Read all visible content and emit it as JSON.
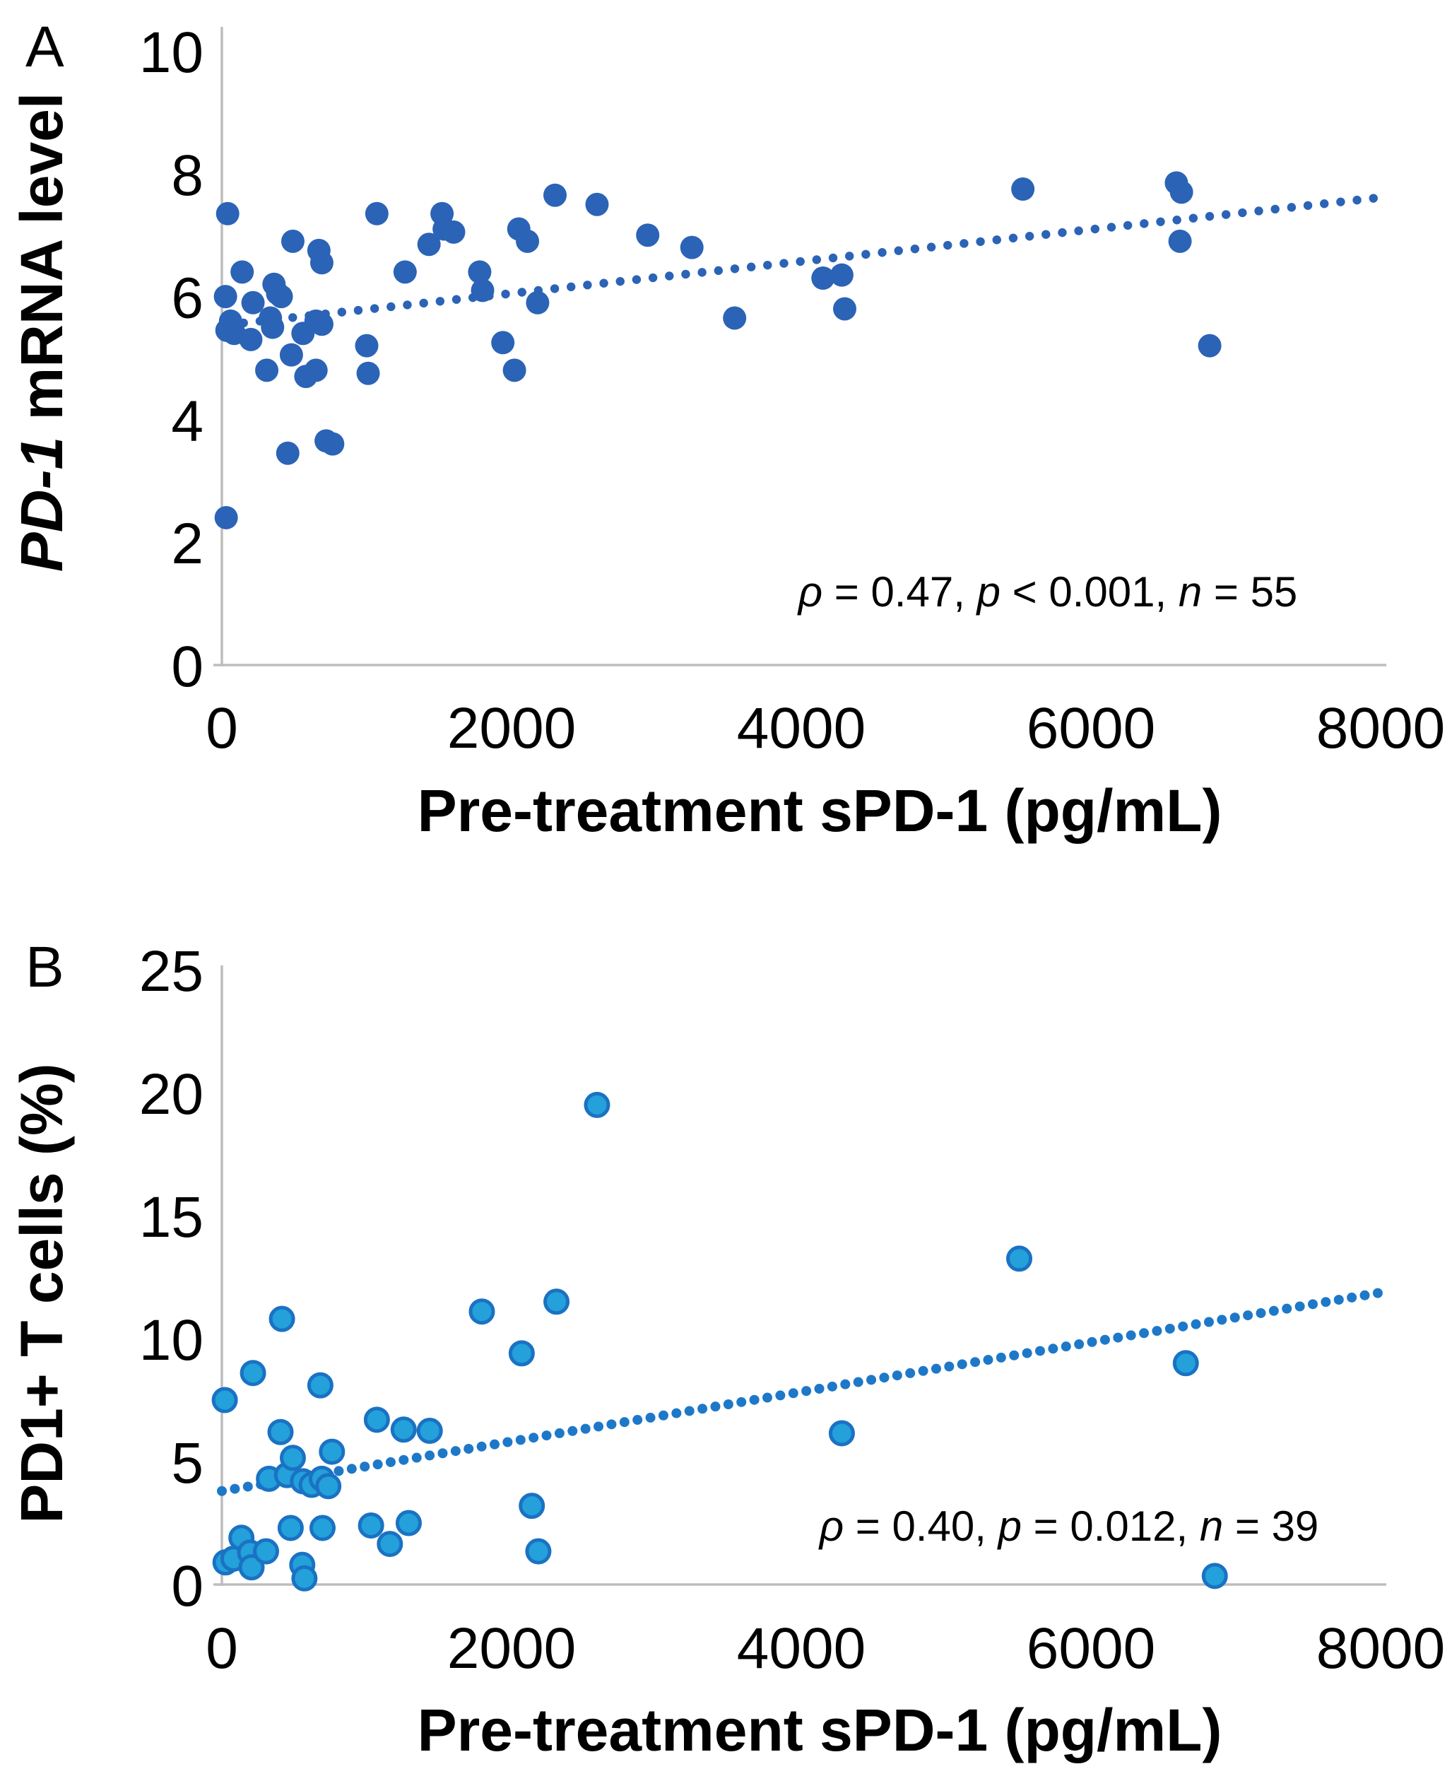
{
  "chart_data": [
    {
      "type": "scatter",
      "panel_label": "A",
      "xlabel": "Pre-treatment sPD-1 (pg/mL)",
      "ylabel_parts": [
        {
          "text": "PD-1",
          "italic": true
        },
        {
          "text": " mRNA level",
          "italic": false
        }
      ],
      "xlim": [
        0,
        8000
      ],
      "ylim": [
        0,
        10
      ],
      "x_ticks": [
        0,
        2000,
        4000,
        6000,
        8000
      ],
      "y_ticks": [
        0,
        2,
        4,
        6,
        8,
        10
      ],
      "grid": false,
      "legend": "none",
      "annotation_text": "ρ = 0.47, p < 0.001, n = 55",
      "annotation_parts": [
        {
          "text": "ρ",
          "italic": true
        },
        {
          "text": " = 0.47, ",
          "italic": false
        },
        {
          "text": "p",
          "italic": true
        },
        {
          "text": " < 0.001, ",
          "italic": false
        },
        {
          "text": "n",
          "italic": true
        },
        {
          "text": " = 55",
          "italic": false
        }
      ],
      "points": [
        [
          30,
          2.4
        ],
        [
          40,
          7.35
        ],
        [
          25,
          6.0
        ],
        [
          35,
          5.45
        ],
        [
          60,
          5.6
        ],
        [
          85,
          5.4
        ],
        [
          140,
          6.4
        ],
        [
          200,
          5.3
        ],
        [
          215,
          5.9
        ],
        [
          310,
          4.8
        ],
        [
          335,
          5.65
        ],
        [
          350,
          5.5
        ],
        [
          360,
          6.2
        ],
        [
          385,
          6.05
        ],
        [
          410,
          6.0
        ],
        [
          455,
          3.45
        ],
        [
          490,
          6.9
        ],
        [
          480,
          5.05
        ],
        [
          560,
          5.4
        ],
        [
          580,
          4.7
        ],
        [
          650,
          4.8
        ],
        [
          650,
          5.6
        ],
        [
          690,
          5.55
        ],
        [
          670,
          6.75
        ],
        [
          690,
          6.55
        ],
        [
          720,
          3.65
        ],
        [
          765,
          3.6
        ],
        [
          1000,
          5.2
        ],
        [
          1010,
          4.75
        ],
        [
          1070,
          7.35
        ],
        [
          1265,
          6.4
        ],
        [
          1430,
          6.85
        ],
        [
          1520,
          7.35
        ],
        [
          1535,
          7.1
        ],
        [
          1600,
          7.05
        ],
        [
          1780,
          6.4
        ],
        [
          1800,
          6.1
        ],
        [
          1940,
          5.25
        ],
        [
          2020,
          4.8
        ],
        [
          2050,
          7.1
        ],
        [
          2110,
          6.9
        ],
        [
          2180,
          5.9
        ],
        [
          2300,
          7.65
        ],
        [
          2590,
          7.5
        ],
        [
          2940,
          7.0
        ],
        [
          3245,
          6.8
        ],
        [
          3540,
          5.65
        ],
        [
          4150,
          6.3
        ],
        [
          4280,
          6.35
        ],
        [
          4300,
          5.8
        ],
        [
          5530,
          7.75
        ],
        [
          6590,
          7.85
        ],
        [
          6625,
          7.7
        ],
        [
          6615,
          6.9
        ],
        [
          6820,
          5.2
        ]
      ],
      "trend": {
        "style": "dotted",
        "x": [
          150,
          7950
        ],
        "y": [
          5.57,
          7.6
        ]
      },
      "colors": {
        "point_fill": "#2b63b6",
        "point_stroke": "none",
        "trend": "#2b63b6"
      }
    },
    {
      "type": "scatter",
      "panel_label": "B",
      "xlabel": "Pre-treatment sPD-1 (pg/mL)",
      "ylabel_parts": [
        {
          "text": "PD1+ T cells (%)",
          "italic": false
        }
      ],
      "xlim": [
        0,
        8000
      ],
      "ylim": [
        0,
        25
      ],
      "x_ticks": [
        0,
        2000,
        4000,
        6000,
        8000
      ],
      "y_ticks": [
        0,
        5,
        10,
        15,
        20,
        25
      ],
      "grid": false,
      "legend": "none",
      "annotation_text": "ρ = 0.40, p = 0.012, n = 39",
      "annotation_parts": [
        {
          "text": "ρ",
          "italic": true
        },
        {
          "text": " = 0.40, ",
          "italic": false
        },
        {
          "text": "p",
          "italic": true
        },
        {
          "text": " = 0.012, ",
          "italic": false
        },
        {
          "text": "n",
          "italic": true
        },
        {
          "text": " = 39",
          "italic": false
        }
      ],
      "points": [
        [
          20,
          7.5
        ],
        [
          25,
          0.9
        ],
        [
          80,
          1.05
        ],
        [
          135,
          1.9
        ],
        [
          195,
          1.3
        ],
        [
          205,
          0.7
        ],
        [
          215,
          8.6
        ],
        [
          305,
          1.35
        ],
        [
          325,
          4.3
        ],
        [
          415,
          10.8
        ],
        [
          450,
          4.45
        ],
        [
          475,
          2.3
        ],
        [
          490,
          5.15
        ],
        [
          405,
          6.2
        ],
        [
          555,
          0.8
        ],
        [
          560,
          4.2
        ],
        [
          570,
          0.25
        ],
        [
          620,
          4.05
        ],
        [
          680,
          8.1
        ],
        [
          690,
          4.3
        ],
        [
          695,
          2.3
        ],
        [
          735,
          4.0
        ],
        [
          760,
          5.4
        ],
        [
          1030,
          2.4
        ],
        [
          1070,
          6.7
        ],
        [
          1160,
          1.65
        ],
        [
          1255,
          6.3
        ],
        [
          1290,
          2.5
        ],
        [
          1435,
          6.25
        ],
        [
          1795,
          11.1
        ],
        [
          2070,
          9.4
        ],
        [
          2140,
          3.2
        ],
        [
          2185,
          1.35
        ],
        [
          2310,
          11.5
        ],
        [
          2590,
          19.5
        ],
        [
          4280,
          6.15
        ],
        [
          5505,
          13.25
        ],
        [
          6655,
          9.0
        ],
        [
          6855,
          0.35
        ]
      ],
      "trend": {
        "style": "dotted",
        "x": [
          0,
          7980
        ],
        "y": [
          3.8,
          11.85
        ]
      },
      "colors": {
        "point_fill": "#24a0da",
        "point_stroke": "#1a72c3",
        "trend": "#1e78c8"
      }
    }
  ],
  "style": {
    "axis_color": "#bdbdbd",
    "text_color": "#000000",
    "background": "#ffffff"
  }
}
